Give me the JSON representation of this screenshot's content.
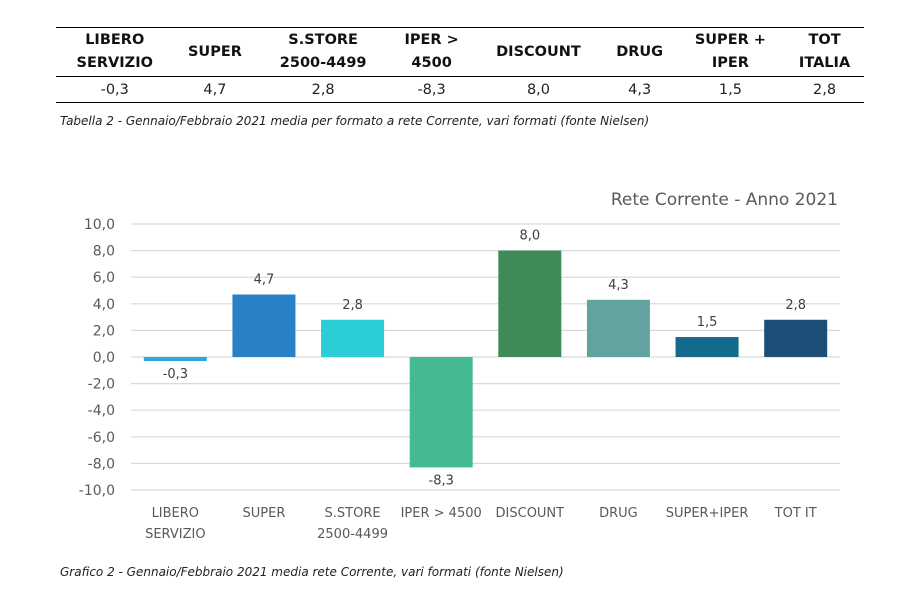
{
  "table": {
    "headers": [
      [
        "LIBERO",
        "SERVIZIO"
      ],
      [
        "SUPER"
      ],
      [
        "S.STORE",
        "2500-4499"
      ],
      [
        "IPER >",
        "4500"
      ],
      [
        "DISCOUNT"
      ],
      [
        "DRUG"
      ],
      [
        "SUPER +",
        "IPER"
      ],
      [
        "TOT",
        "ITALIA"
      ]
    ],
    "values": [
      "-0,3",
      "4,7",
      "2,8",
      "-8,3",
      "8,0",
      "4,3",
      "1,5",
      "2,8"
    ],
    "caption": "Tabella 2 - Gennaio/Febbraio 2021 media per formato a rete Corrente, vari formati (fonte Nielsen)"
  },
  "chart_data": {
    "type": "bar",
    "title": "Rete Corrente - Anno 2021",
    "categories": [
      [
        "LIBERO",
        "SERVIZIO"
      ],
      [
        "SUPER"
      ],
      [
        "S.STORE",
        "2500-4499"
      ],
      [
        "IPER > 4500"
      ],
      [
        "DISCOUNT"
      ],
      [
        "DRUG"
      ],
      [
        "SUPER+IPER"
      ],
      [
        "TOT IT"
      ]
    ],
    "values": [
      -0.3,
      4.7,
      2.8,
      -8.3,
      8.0,
      4.3,
      1.5,
      2.8
    ],
    "data_labels": [
      "-0,3",
      "4,7",
      "2,8",
      "-8,3",
      "8,0",
      "4,3",
      "1,5",
      "2,8"
    ],
    "colors": [
      "#29a9e0",
      "#2a80c4",
      "#2bcdd6",
      "#43b994",
      "#3e8a58",
      "#63a39f",
      "#136a8a",
      "#1c4e78"
    ],
    "ylim": [
      -10,
      10
    ],
    "yticks": [
      10,
      8,
      6,
      4,
      2,
      0,
      -2,
      -4,
      -6,
      -8,
      -10
    ],
    "ytick_labels": [
      "10,0",
      "8,0",
      "6,0",
      "4,0",
      "2,0",
      "0,0",
      "-2,0",
      "-4,0",
      "-6,0",
      "-8,0",
      "-10,0"
    ],
    "grid": true,
    "xlabel": "",
    "ylabel": "",
    "caption": "Grafico 2 - Gennaio/Febbraio 2021 media rete Corrente, vari formati (fonte Nielsen)"
  }
}
